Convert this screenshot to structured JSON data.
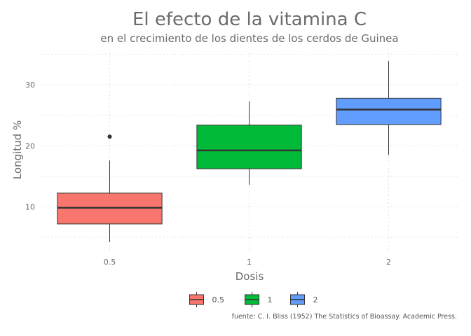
{
  "chart_data": {
    "type": "boxplot",
    "title": "El efecto de la vitamina C",
    "subtitle": "en el crecimiento de los dientes de los cerdos de Guinea",
    "xlabel": "Dosis",
    "ylabel": "Longitud %",
    "categories": [
      "0.5",
      "1",
      "2"
    ],
    "yticks": [
      10,
      20,
      30
    ],
    "ylim": [
      2.6,
      35.3
    ],
    "grid": true,
    "legend_position": "bottom",
    "legend_items": [
      "0.5",
      "1",
      "2"
    ],
    "caption": "fuente: C. I. Bliss (1952) The Statistics of Bioassay. Academic Press.",
    "boxes": [
      {
        "category": "0.5",
        "min": 4.2,
        "q1": 7.2,
        "median": 9.85,
        "q3": 12.25,
        "max": 17.6,
        "outliers": [
          21.5
        ],
        "color": "#F8766D"
      },
      {
        "category": "1",
        "min": 13.6,
        "q1": 16.25,
        "median": 19.25,
        "q3": 23.4,
        "max": 27.3,
        "outliers": [],
        "color": "#00BA38"
      },
      {
        "category": "2",
        "min": 18.5,
        "q1": 23.5,
        "median": 25.95,
        "q3": 27.8,
        "max": 33.9,
        "outliers": [],
        "color": "#619CFF"
      }
    ]
  }
}
